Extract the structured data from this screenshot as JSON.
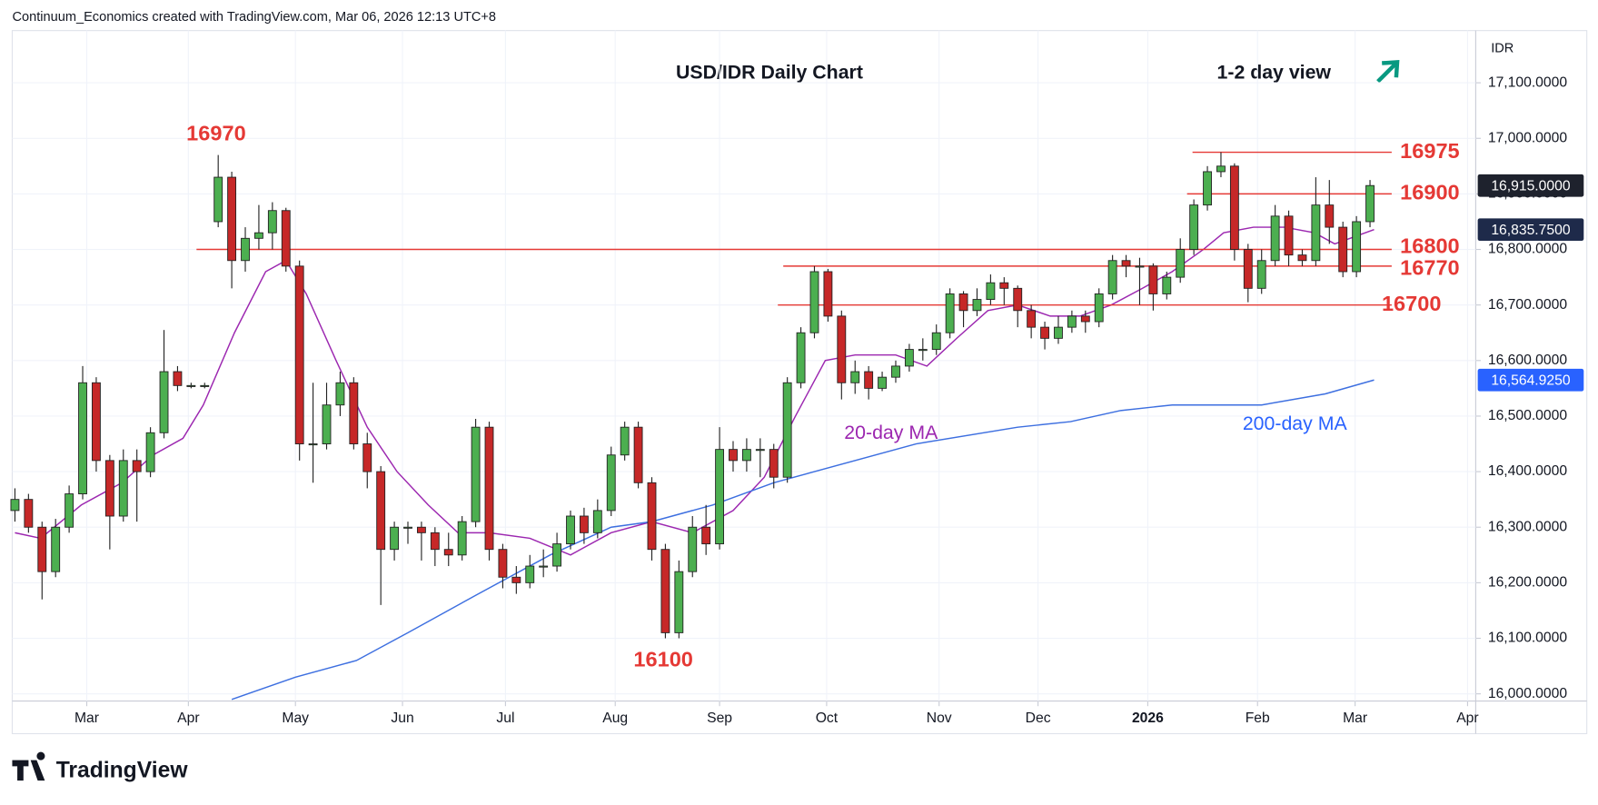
{
  "chart_data": {
    "type": "candlestick",
    "header": "Continuum_Economics created with TradingView.com, Mar 06, 2026 12:13 UTC+8",
    "title": "USD/IDR Daily Chart",
    "subtitle": "1-2 day view",
    "currency": "IDR",
    "brand": "TradingView",
    "colors": {
      "up": "#4caf50",
      "down": "#c62828",
      "level": "#e53935"
    },
    "xlim": [
      -0.2,
      107.8
    ],
    "ylim": [
      15987,
      17194
    ],
    "xticks": [
      {
        "value": 5.3,
        "label": "Mar"
      },
      {
        "value": 12.8,
        "label": "Apr"
      },
      {
        "value": 20.7,
        "label": "May"
      },
      {
        "value": 28.6,
        "label": "Jun"
      },
      {
        "value": 36.2,
        "label": "Jul"
      },
      {
        "value": 44.3,
        "label": "Aug"
      },
      {
        "value": 52.0,
        "label": "Sep"
      },
      {
        "value": 59.9,
        "label": "Oct"
      },
      {
        "value": 68.2,
        "label": "Nov"
      },
      {
        "value": 75.5,
        "label": "Dec"
      },
      {
        "value": 83.6,
        "label": "2026"
      },
      {
        "value": 91.7,
        "label": "Feb"
      },
      {
        "value": 98.9,
        "label": "Mar"
      },
      {
        "value": 107.2,
        "label": "Apr"
      }
    ],
    "yticks": [
      {
        "value": 16000,
        "label": "16,000.0000"
      },
      {
        "value": 16100,
        "label": "16,100.0000"
      },
      {
        "value": 16200,
        "label": "16,200.0000"
      },
      {
        "value": 16300,
        "label": "16,300.0000"
      },
      {
        "value": 16400,
        "label": "16,400.0000"
      },
      {
        "value": 16500,
        "label": "16,500.0000"
      },
      {
        "value": 16600,
        "label": "16,600.0000"
      },
      {
        "value": 16700,
        "label": "16,700.0000"
      },
      {
        "value": 16800,
        "label": "16,800.0000"
      },
      {
        "value": 16900,
        "label": "16,900.0000"
      },
      {
        "value": 17000,
        "label": "17,000.0000"
      },
      {
        "value": 17100,
        "label": "17,100.0000"
      }
    ],
    "ohlc": [
      [
        16330,
        16370,
        16310,
        16350
      ],
      [
        16350,
        16360,
        16290,
        16300
      ],
      [
        16300,
        16310,
        16170,
        16220
      ],
      [
        16220,
        16315,
        16210,
        16300
      ],
      [
        16300,
        16375,
        16290,
        16360
      ],
      [
        16360,
        16590,
        16350,
        16560
      ],
      [
        16560,
        16570,
        16400,
        16420
      ],
      [
        16420,
        16430,
        16260,
        16320
      ],
      [
        16320,
        16440,
        16310,
        16420
      ],
      [
        16420,
        16440,
        16310,
        16400
      ],
      [
        16400,
        16480,
        16390,
        16470
      ],
      [
        16470,
        16655,
        16460,
        16580
      ],
      [
        16580,
        16590,
        16545,
        16555
      ],
      [
        16555,
        16560,
        16550,
        16555
      ],
      [
        16555,
        16560,
        16550,
        16555
      ],
      [
        16850,
        16970,
        16840,
        16930
      ],
      [
        16930,
        16940,
        16730,
        16780
      ],
      [
        16780,
        16840,
        16760,
        16820
      ],
      [
        16820,
        16880,
        16800,
        16830
      ],
      [
        16830,
        16885,
        16800,
        16870
      ],
      [
        16870,
        16875,
        16760,
        16770
      ],
      [
        16770,
        16780,
        16420,
        16450
      ],
      [
        16450,
        16560,
        16380,
        16450
      ],
      [
        16450,
        16560,
        16440,
        16520
      ],
      [
        16520,
        16580,
        16500,
        16560
      ],
      [
        16560,
        16570,
        16440,
        16450
      ],
      [
        16450,
        16470,
        16370,
        16400
      ],
      [
        16400,
        16410,
        16160,
        16260
      ],
      [
        16260,
        16310,
        16240,
        16300
      ],
      [
        16300,
        16310,
        16270,
        16300
      ],
      [
        16300,
        16310,
        16240,
        16290
      ],
      [
        16290,
        16300,
        16230,
        16260
      ],
      [
        16260,
        16290,
        16230,
        16250
      ],
      [
        16250,
        16320,
        16240,
        16310
      ],
      [
        16310,
        16495,
        16300,
        16480
      ],
      [
        16480,
        16490,
        16240,
        16260
      ],
      [
        16260,
        16270,
        16190,
        16210
      ],
      [
        16210,
        16230,
        16180,
        16200
      ],
      [
        16200,
        16250,
        16190,
        16230
      ],
      [
        16230,
        16260,
        16210,
        16230
      ],
      [
        16230,
        16290,
        16220,
        16270
      ],
      [
        16270,
        16330,
        16260,
        16320
      ],
      [
        16320,
        16335,
        16270,
        16290
      ],
      [
        16290,
        16350,
        16280,
        16330
      ],
      [
        16330,
        16445,
        16320,
        16430
      ],
      [
        16430,
        16490,
        16420,
        16480
      ],
      [
        16480,
        16490,
        16370,
        16380
      ],
      [
        16380,
        16390,
        16240,
        16260
      ],
      [
        16260,
        16270,
        16100,
        16110
      ],
      [
        16110,
        16240,
        16100,
        16220
      ],
      [
        16220,
        16320,
        16210,
        16300
      ],
      [
        16300,
        16340,
        16250,
        16270
      ],
      [
        16270,
        16480,
        16260,
        16440
      ],
      [
        16440,
        16455,
        16400,
        16420
      ],
      [
        16420,
        16460,
        16400,
        16440
      ],
      [
        16440,
        16460,
        16390,
        16440
      ],
      [
        16440,
        16450,
        16370,
        16390
      ],
      [
        16390,
        16570,
        16380,
        16560
      ],
      [
        16560,
        16660,
        16550,
        16650
      ],
      [
        16650,
        16770,
        16640,
        16760
      ],
      [
        16760,
        16765,
        16670,
        16680
      ],
      [
        16680,
        16690,
        16530,
        16560
      ],
      [
        16560,
        16600,
        16540,
        16580
      ],
      [
        16580,
        16590,
        16530,
        16550
      ],
      [
        16550,
        16580,
        16545,
        16570
      ],
      [
        16570,
        16600,
        16560,
        16590
      ],
      [
        16590,
        16630,
        16580,
        16620
      ],
      [
        16620,
        16640,
        16600,
        16620
      ],
      [
        16620,
        16665,
        16610,
        16650
      ],
      [
        16650,
        16730,
        16640,
        16720
      ],
      [
        16720,
        16725,
        16660,
        16690
      ],
      [
        16690,
        16730,
        16680,
        16710
      ],
      [
        16710,
        16755,
        16700,
        16740
      ],
      [
        16740,
        16750,
        16700,
        16730
      ],
      [
        16730,
        16735,
        16660,
        16690
      ],
      [
        16690,
        16700,
        16640,
        16660
      ],
      [
        16660,
        16670,
        16620,
        16640
      ],
      [
        16640,
        16680,
        16630,
        16660
      ],
      [
        16660,
        16690,
        16650,
        16680
      ],
      [
        16680,
        16690,
        16650,
        16670
      ],
      [
        16670,
        16730,
        16660,
        16720
      ],
      [
        16720,
        16790,
        16710,
        16780
      ],
      [
        16780,
        16790,
        16750,
        16770
      ],
      [
        16770,
        16785,
        16700,
        16770
      ],
      [
        16770,
        16775,
        16690,
        16720
      ],
      [
        16720,
        16760,
        16710,
        16750
      ],
      [
        16750,
        16820,
        16740,
        16800
      ],
      [
        16800,
        16890,
        16790,
        16880
      ],
      [
        16880,
        16950,
        16870,
        16940
      ],
      [
        16940,
        16975,
        16930,
        16950
      ],
      [
        16950,
        16955,
        16780,
        16800
      ],
      [
        16800,
        16810,
        16705,
        16730
      ],
      [
        16730,
        16800,
        16720,
        16780
      ],
      [
        16780,
        16880,
        16770,
        16860
      ],
      [
        16860,
        16870,
        16770,
        16790
      ],
      [
        16790,
        16800,
        16770,
        16780
      ],
      [
        16780,
        16930,
        16770,
        16880
      ],
      [
        16880,
        16925,
        16810,
        16840
      ],
      [
        16840,
        16850,
        16750,
        16760
      ],
      [
        16760,
        16860,
        16750,
        16850
      ],
      [
        16850,
        16925,
        16840,
        16915
      ]
    ],
    "last_price": {
      "value": 16915,
      "label": "16,915.0000"
    },
    "series": [
      {
        "name": "20-day MA",
        "color": "#9c27b0",
        "label_color": "#9c27b0",
        "last_label": "16,835.7500",
        "x": [
          0,
          1.9,
          4.9,
          7.9,
          10.2,
          12.4,
          13.9,
          16.2,
          18.5,
          20,
          21.5,
          23.7,
          26,
          28.2,
          30.5,
          32.7,
          35,
          38,
          41,
          44,
          47,
          50,
          53,
          55.3,
          57.6,
          59.8,
          62,
          65,
          67.3,
          69.5,
          71.8,
          74,
          76.4,
          78.6,
          80.9,
          83.2,
          85.4,
          87.7,
          89.2,
          91.4,
          93.7,
          95.9,
          97.4,
          100.3
        ],
        "values": [
          16290,
          16280,
          16340,
          16380,
          16430,
          16460,
          16520,
          16650,
          16760,
          16780,
          16720,
          16600,
          16480,
          16400,
          16340,
          16290,
          16290,
          16280,
          16250,
          16290,
          16310,
          16290,
          16330,
          16390,
          16500,
          16600,
          16610,
          16610,
          16590,
          16640,
          16690,
          16700,
          16680,
          16680,
          16700,
          16730,
          16760,
          16800,
          16830,
          16840,
          16840,
          16830,
          16810,
          16835.75
        ]
      },
      {
        "name": "200-day MA",
        "color": "#3d6fe0",
        "label_color": "#2962ff",
        "last_label": "16,564.9250",
        "x": [
          16,
          20.7,
          25.2,
          29,
          34.2,
          39.5,
          44,
          47,
          51.5,
          56,
          59,
          66.5,
          74,
          77.9,
          81.6,
          85.4,
          89.2,
          92,
          96.7,
          100.3
        ],
        "values": [
          15990,
          16030,
          16060,
          16110,
          16180,
          16250,
          16300,
          16310,
          16340,
          16380,
          16400,
          16450,
          16480,
          16490,
          16510,
          16520,
          16520,
          16520,
          16540,
          16564.925
        ]
      }
    ],
    "levels": [
      {
        "value": 16975,
        "x_start": 86.9
      },
      {
        "value": 16900,
        "x_start": 86.5
      },
      {
        "value": 16800,
        "x_start": 13.4
      },
      {
        "value": 16770,
        "x_start": 56.7
      },
      {
        "value": 16700,
        "x_start": 56.3
      }
    ],
    "peaks": [
      {
        "value": 16970,
        "x": 15
      },
      {
        "value": 16100,
        "x": 48
      }
    ]
  }
}
